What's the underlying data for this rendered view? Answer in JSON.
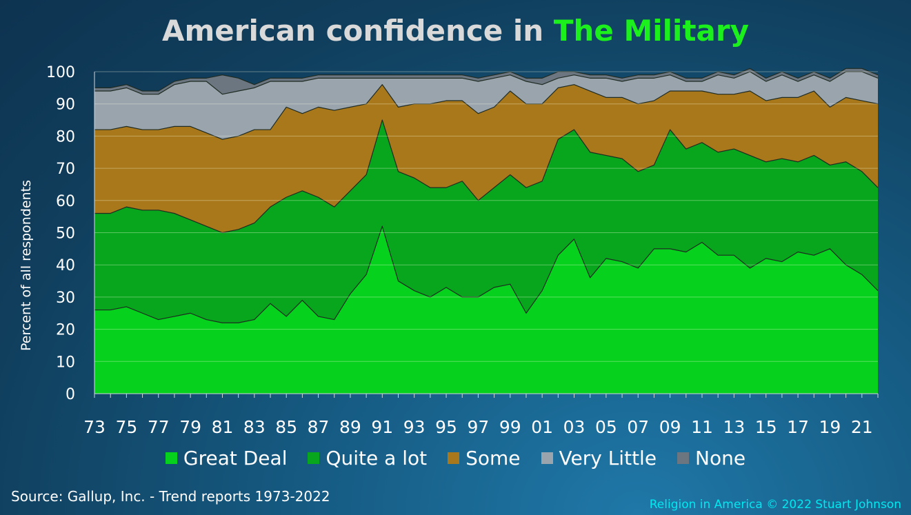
{
  "title": {
    "prefix": "American confidence in ",
    "highlight": "The Military"
  },
  "source": "Source: Gallup, Inc. - Trend reports 1973-2022",
  "credit": "Religion in America © 2022 Stuart Johnson",
  "colors": {
    "great_deal": "#06d11c",
    "quite_a_lot": "#07a61c",
    "some": "#a8781a",
    "very_little": "#9aa4ad",
    "none": "#6b7680",
    "title_accent": "#1cf01c",
    "credit": "#00e8f0"
  },
  "chart_data": {
    "type": "area",
    "stacked": true,
    "title": "American confidence in The Military",
    "xlabel": "",
    "ylabel": "Percent of all respondents",
    "ylim": [
      0,
      100
    ],
    "xlim": [
      1973,
      2022
    ],
    "grid": true,
    "legend_position": "bottom",
    "y_ticks": [
      0,
      10,
      20,
      30,
      40,
      50,
      60,
      70,
      80,
      90,
      100
    ],
    "x_tick_labels": [
      {
        "year": 1973,
        "label": "73"
      },
      {
        "year": 1975,
        "label": "75"
      },
      {
        "year": 1977,
        "label": "77"
      },
      {
        "year": 1979,
        "label": "79"
      },
      {
        "year": 1981,
        "label": "81"
      },
      {
        "year": 1983,
        "label": "83"
      },
      {
        "year": 1985,
        "label": "85"
      },
      {
        "year": 1987,
        "label": "87"
      },
      {
        "year": 1989,
        "label": "89"
      },
      {
        "year": 1991,
        "label": "91"
      },
      {
        "year": 1993,
        "label": "93"
      },
      {
        "year": 1995,
        "label": "95"
      },
      {
        "year": 1997,
        "label": "97"
      },
      {
        "year": 1999,
        "label": "99"
      },
      {
        "year": 2001,
        "label": "01"
      },
      {
        "year": 2003,
        "label": "03"
      },
      {
        "year": 2005,
        "label": "05"
      },
      {
        "year": 2007,
        "label": "07"
      },
      {
        "year": 2009,
        "label": "09"
      },
      {
        "year": 2011,
        "label": "11"
      },
      {
        "year": 2013,
        "label": "13"
      },
      {
        "year": 2015,
        "label": "15"
      },
      {
        "year": 2017,
        "label": "17"
      },
      {
        "year": 2019,
        "label": "19"
      },
      {
        "year": 2021,
        "label": "21"
      }
    ],
    "x": [
      1973,
      1974,
      1975,
      1976,
      1977,
      1978,
      1979,
      1980,
      1981,
      1982,
      1983,
      1984,
      1985,
      1986,
      1987,
      1988,
      1989,
      1990,
      1991,
      1992,
      1993,
      1994,
      1995,
      1996,
      1997,
      1998,
      1999,
      2000,
      2001,
      2002,
      2003,
      2004,
      2005,
      2006,
      2007,
      2008,
      2009,
      2010,
      2011,
      2012,
      2013,
      2014,
      2015,
      2016,
      2017,
      2018,
      2019,
      2020,
      2021,
      2022
    ],
    "series": [
      {
        "name": "Great Deal",
        "values": [
          26,
          26,
          27,
          25,
          23,
          24,
          25,
          23,
          22,
          22,
          23,
          28,
          24,
          29,
          24,
          23,
          31,
          37,
          52,
          35,
          32,
          30,
          33,
          30,
          30,
          33,
          34,
          25,
          32,
          43,
          48,
          36,
          42,
          41,
          39,
          45,
          45,
          44,
          47,
          43,
          43,
          39,
          42,
          41,
          44,
          43,
          45,
          40,
          37,
          32
        ]
      },
      {
        "name": "Quite a lot",
        "values": [
          30,
          30,
          31,
          32,
          34,
          32,
          29,
          29,
          28,
          29,
          30,
          30,
          37,
          34,
          37,
          35,
          32,
          31,
          33,
          34,
          35,
          34,
          31,
          36,
          30,
          31,
          34,
          39,
          34,
          36,
          34,
          39,
          32,
          32,
          30,
          26,
          37,
          32,
          31,
          32,
          33,
          35,
          30,
          32,
          28,
          31,
          26,
          32,
          32,
          32
        ]
      },
      {
        "name": "Some",
        "values": [
          26,
          26,
          25,
          25,
          25,
          27,
          29,
          29,
          29,
          29,
          29,
          24,
          28,
          24,
          28,
          30,
          26,
          22,
          11,
          20,
          23,
          26,
          27,
          25,
          27,
          25,
          26,
          26,
          24,
          16,
          14,
          19,
          18,
          19,
          21,
          20,
          12,
          18,
          16,
          18,
          17,
          20,
          19,
          19,
          20,
          20,
          18,
          20,
          22,
          26
        ]
      },
      {
        "name": "Very Little",
        "values": [
          12,
          12,
          12,
          11,
          11,
          13,
          14,
          16,
          14,
          14,
          13,
          15,
          8,
          10,
          9,
          10,
          9,
          8,
          2,
          9,
          8,
          8,
          7,
          7,
          10,
          9,
          5,
          7,
          6,
          3,
          3,
          4,
          6,
          5,
          8,
          7,
          5,
          3,
          3,
          6,
          5,
          6,
          6,
          7,
          5,
          5,
          8,
          8,
          9,
          8
        ]
      },
      {
        "name": "None",
        "values": [
          1,
          1,
          1,
          1,
          1,
          1,
          1,
          1,
          6,
          4,
          1,
          1,
          1,
          1,
          1,
          1,
          1,
          1,
          1,
          1,
          1,
          1,
          1,
          1,
          1,
          1,
          1,
          1,
          2,
          2,
          1,
          1,
          1,
          1,
          1,
          1,
          1,
          1,
          1,
          1,
          1,
          1,
          1,
          1,
          1,
          1,
          1,
          1,
          1,
          1
        ]
      }
    ]
  },
  "legend": [
    {
      "label": "Great Deal",
      "color": "#06d11c"
    },
    {
      "label": "Quite a lot",
      "color": "#07a61c"
    },
    {
      "label": "Some",
      "color": "#a8781a"
    },
    {
      "label": "Very Little",
      "color": "#9aa4ad"
    },
    {
      "label": "None",
      "color": "#6b7680"
    }
  ]
}
